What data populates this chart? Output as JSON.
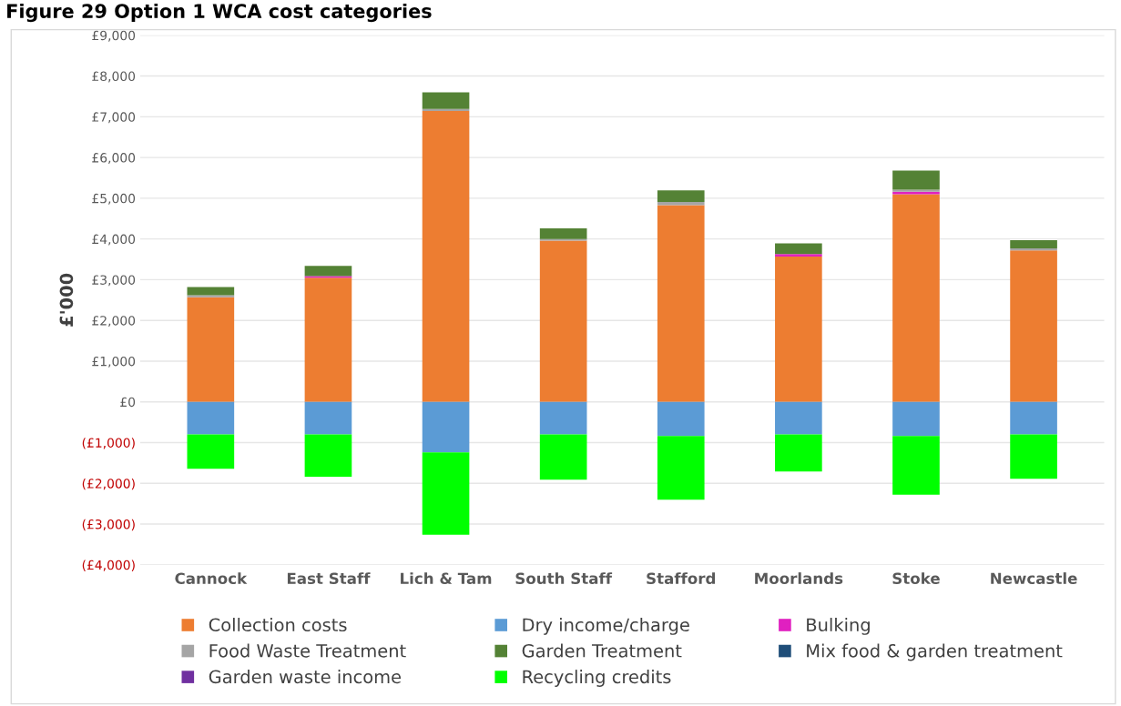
{
  "chart_data": {
    "type": "bar",
    "stacked": true,
    "title": "Figure 29 Option 1 WCA cost categories",
    "ylabel": "£'000",
    "categories": [
      "Cannock",
      "East Staff",
      "Lich & Tam",
      "South Staff",
      "Stafford",
      "Moorlands",
      "Stoke",
      "Newcastle"
    ],
    "series": [
      {
        "name": "Collection costs",
        "color": "#ed7d31",
        "values": [
          2570,
          3050,
          7140,
          3960,
          4830,
          3570,
          5100,
          3720
        ]
      },
      {
        "name": "Dry income/charge",
        "color": "#5b9bd5",
        "values": [
          -800,
          -800,
          -1240,
          -800,
          -840,
          -800,
          -840,
          -800
        ]
      },
      {
        "name": "Bulking",
        "color": "#e020c0",
        "values": [
          0,
          40,
          0,
          0,
          0,
          60,
          60,
          0
        ]
      },
      {
        "name": "Food Waste Treatment",
        "color": "#a5a5a5",
        "values": [
          50,
          null,
          50,
          40,
          80,
          null,
          50,
          50
        ]
      },
      {
        "name": "Garden Treatment",
        "color": "#548235",
        "values": [
          200,
          250,
          410,
          260,
          280,
          260,
          470,
          200
        ]
      },
      {
        "name": "Mix food & garden treatment",
        "color": "#1f4e79",
        "values": [
          0,
          0,
          0,
          0,
          0,
          0,
          0,
          0
        ]
      },
      {
        "name": "Garden waste income",
        "color": "#7030a0",
        "values": [
          0,
          0,
          0,
          0,
          0,
          0,
          0,
          0
        ]
      },
      {
        "name": "Recycling credits",
        "color": "#00ff00",
        "values": [
          -840,
          -1040,
          -2020,
          -1110,
          -1560,
          -910,
          -1440,
          -1090
        ]
      }
    ],
    "ylim": [
      -4000,
      9000
    ],
    "yticks": [
      {
        "value": -4000,
        "label": "(£4,000)"
      },
      {
        "value": -3000,
        "label": "(£3,000)"
      },
      {
        "value": -2000,
        "label": "(£2,000)"
      },
      {
        "value": -1000,
        "label": "(£1,000)"
      },
      {
        "value": 0,
        "label": "£0"
      },
      {
        "value": 1000,
        "label": "£1,000"
      },
      {
        "value": 2000,
        "label": "£2,000"
      },
      {
        "value": 3000,
        "label": "£3,000"
      },
      {
        "value": 4000,
        "label": "£4,000"
      },
      {
        "value": 5000,
        "label": "£5,000"
      },
      {
        "value": 6000,
        "label": "£6,000"
      },
      {
        "value": 7000,
        "label": "£7,000"
      },
      {
        "value": 8000,
        "label": "£8,000"
      },
      {
        "value": 9000,
        "label": "£9,000"
      }
    ],
    "grid": "y",
    "legend": "bottom"
  }
}
